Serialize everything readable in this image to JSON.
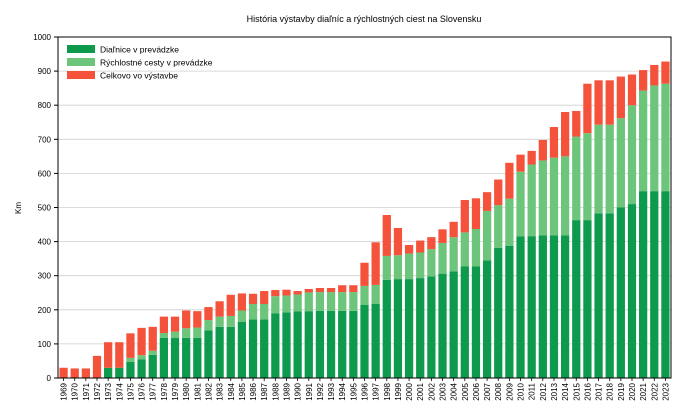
{
  "chart_data": {
    "type": "bar",
    "stacked": true,
    "title": "História výstavby diaľníc a rýchlostných ciest na Slovensku",
    "xlabel": "",
    "ylabel": "Km",
    "ylim": [
      0,
      1000
    ],
    "yticks": [
      0,
      100,
      200,
      300,
      400,
      500,
      600,
      700,
      800,
      900,
      1000
    ],
    "grid": "horizontal",
    "legend_position": "top-left",
    "categories": [
      "1969",
      "1970",
      "1971",
      "1972",
      "1973",
      "1974",
      "1975",
      "1976",
      "1977",
      "1978",
      "1979",
      "1980",
      "1981",
      "1982",
      "1983",
      "1984",
      "1985",
      "1986",
      "1987",
      "1988",
      "1989",
      "1990",
      "1991",
      "1992",
      "1993",
      "1994",
      "1995",
      "1996",
      "1997",
      "1998",
      "1999",
      "2000",
      "2001",
      "2002",
      "2003",
      "2004",
      "2005",
      "2006",
      "2007",
      "2008",
      "2009",
      "2010",
      "2011",
      "2012",
      "2013",
      "2014",
      "2015",
      "2016",
      "2017",
      "2018",
      "2019",
      "2020",
      "2021",
      "2022",
      "2023"
    ],
    "series": [
      {
        "name": "Diaľnice v prevádzke",
        "color": "#0e9a4d",
        "values": [
          0,
          0,
          0,
          0,
          30,
          30,
          47,
          55,
          68,
          118,
          118,
          118,
          118,
          140,
          150,
          150,
          165,
          172,
          172,
          190,
          192,
          195,
          196,
          197,
          197,
          197,
          197,
          215,
          218,
          288,
          290,
          290,
          293,
          298,
          306,
          313,
          327,
          327,
          345,
          382,
          388,
          415,
          416,
          418,
          418,
          418,
          463,
          463,
          483,
          483,
          500,
          510,
          548,
          548,
          548
        ]
      },
      {
        "name": "Rýchlostné cesty v prevádzke",
        "color": "#6cc57b",
        "values": [
          0,
          0,
          0,
          0,
          0,
          0,
          12,
          12,
          12,
          14,
          18,
          28,
          30,
          30,
          30,
          32,
          33,
          45,
          45,
          50,
          50,
          50,
          55,
          55,
          55,
          55,
          55,
          55,
          55,
          70,
          70,
          75,
          75,
          80,
          90,
          100,
          100,
          110,
          145,
          125,
          138,
          190,
          210,
          220,
          228,
          232,
          245,
          255,
          260,
          260,
          262,
          290,
          295,
          310,
          315
        ]
      },
      {
        "name": "Celkovo vo výstavbe",
        "color": "#f4523a",
        "values": [
          30,
          28,
          28,
          65,
          75,
          75,
          72,
          80,
          70,
          48,
          44,
          52,
          48,
          38,
          45,
          62,
          50,
          30,
          38,
          18,
          17,
          10,
          10,
          12,
          12,
          20,
          20,
          68,
          125,
          120,
          80,
          25,
          35,
          35,
          40,
          45,
          95,
          90,
          55,
          75,
          105,
          50,
          40,
          60,
          90,
          130,
          75,
          145,
          130,
          130,
          122,
          90,
          60,
          60,
          65
        ]
      }
    ]
  }
}
